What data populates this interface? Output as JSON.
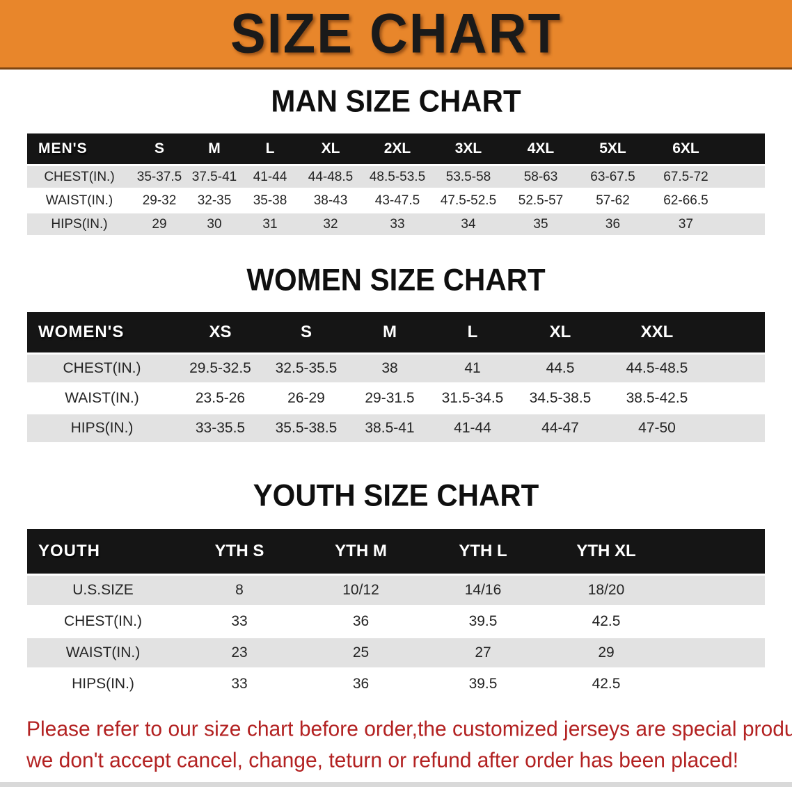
{
  "banner": {
    "title": "SIZE CHART",
    "bg_color": "#E8862B",
    "text_color": "#1a1a1a"
  },
  "sections": [
    {
      "heading": "MAN SIZE CHART",
      "corner_label": "MEN'S",
      "sizes": [
        "S",
        "M",
        "L",
        "XL",
        "2XL",
        "3XL",
        "4XL",
        "5XL",
        "6XL"
      ],
      "rows": [
        {
          "label": "CHEST(IN.)",
          "values": [
            "35-37.5",
            "37.5-41",
            "41-44",
            "44-48.5",
            "48.5-53.5",
            "53.5-58",
            "58-63",
            "63-67.5",
            "67.5-72"
          ]
        },
        {
          "label": "WAIST(IN.)",
          "values": [
            "29-32",
            "32-35",
            "35-38",
            "38-43",
            "43-47.5",
            "47.5-52.5",
            "52.5-57",
            "57-62",
            "62-66.5"
          ]
        },
        {
          "label": "HIPS(IN.)",
          "values": [
            "29",
            "30",
            "31",
            "32",
            "33",
            "34",
            "35",
            "36",
            "37"
          ]
        }
      ]
    },
    {
      "heading": "WOMEN SIZE CHART",
      "corner_label": "WOMEN'S",
      "sizes": [
        "XS",
        "S",
        "M",
        "L",
        "XL",
        "XXL"
      ],
      "rows": [
        {
          "label": "CHEST(IN.)",
          "values": [
            "29.5-32.5",
            "32.5-35.5",
            "38",
            "41",
            "44.5",
            "44.5-48.5"
          ]
        },
        {
          "label": "WAIST(IN.)",
          "values": [
            "23.5-26",
            "26-29",
            "29-31.5",
            "31.5-34.5",
            "34.5-38.5",
            "38.5-42.5"
          ]
        },
        {
          "label": "HIPS(IN.)",
          "values": [
            "33-35.5",
            "35.5-38.5",
            "38.5-41",
            "41-44",
            "44-47",
            "47-50"
          ]
        }
      ]
    },
    {
      "heading": "YOUTH SIZE CHART",
      "corner_label": "YOUTH",
      "sizes": [
        "YTH S",
        "YTH M",
        "YTH L",
        "YTH XL"
      ],
      "rows": [
        {
          "label": "U.S.SIZE",
          "values": [
            "8",
            "10/12",
            "14/16",
            "18/20"
          ]
        },
        {
          "label": "CHEST(IN.)",
          "values": [
            "33",
            "36",
            "39.5",
            "42.5"
          ]
        },
        {
          "label": "WAIST(IN.)",
          "values": [
            "23",
            "25",
            "27",
            "29"
          ]
        },
        {
          "label": "HIPS(IN.)",
          "values": [
            "33",
            "36",
            "39.5",
            "42.5"
          ]
        }
      ]
    }
  ],
  "footer": {
    "line1": "Please refer to our size chart before order,the customized jerseys are special products,",
    "line2": "we don't accept cancel, change, teturn or refund after order has been placed!",
    "text_color": "#b32222"
  },
  "colors": {
    "banner_orange": "#E8862B",
    "banner_underline": "#7d4512",
    "header_bar": "#151515",
    "stripe": "#e2e2e2",
    "footer_red": "#b32222"
  }
}
